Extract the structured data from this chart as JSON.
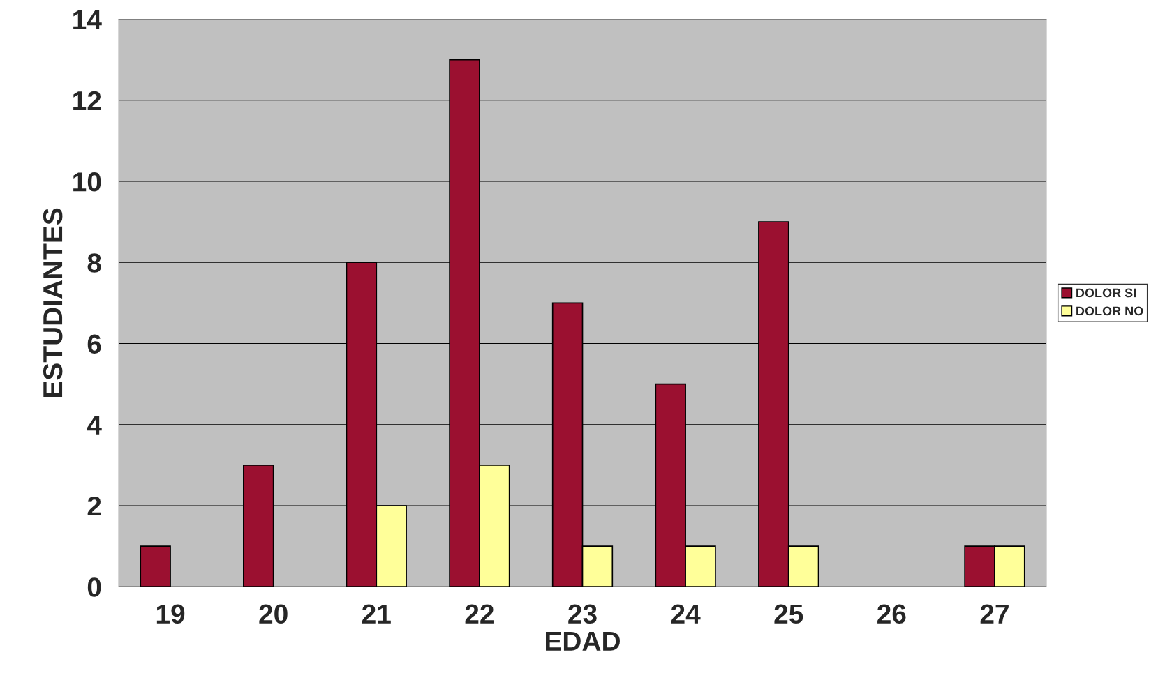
{
  "chart_data": {
    "type": "bar",
    "xlabel": "EDAD",
    "ylabel": "ESTUDIANTES",
    "categories": [
      "19",
      "20",
      "21",
      "22",
      "23",
      "24",
      "25",
      "26",
      "27"
    ],
    "series": [
      {
        "name": "DOLOR SI",
        "color": "#9b1030",
        "values": [
          1,
          3,
          8,
          13,
          7,
          5,
          9,
          0,
          1
        ]
      },
      {
        "name": "DOLOR NO",
        "color": "#ffff99",
        "values": [
          0,
          0,
          2,
          3,
          1,
          1,
          1,
          0,
          1
        ]
      }
    ],
    "ylim": [
      0,
      14
    ],
    "yticks": [
      0,
      2,
      4,
      6,
      8,
      10,
      12,
      14
    ],
    "grid": "y",
    "legend": "right"
  }
}
